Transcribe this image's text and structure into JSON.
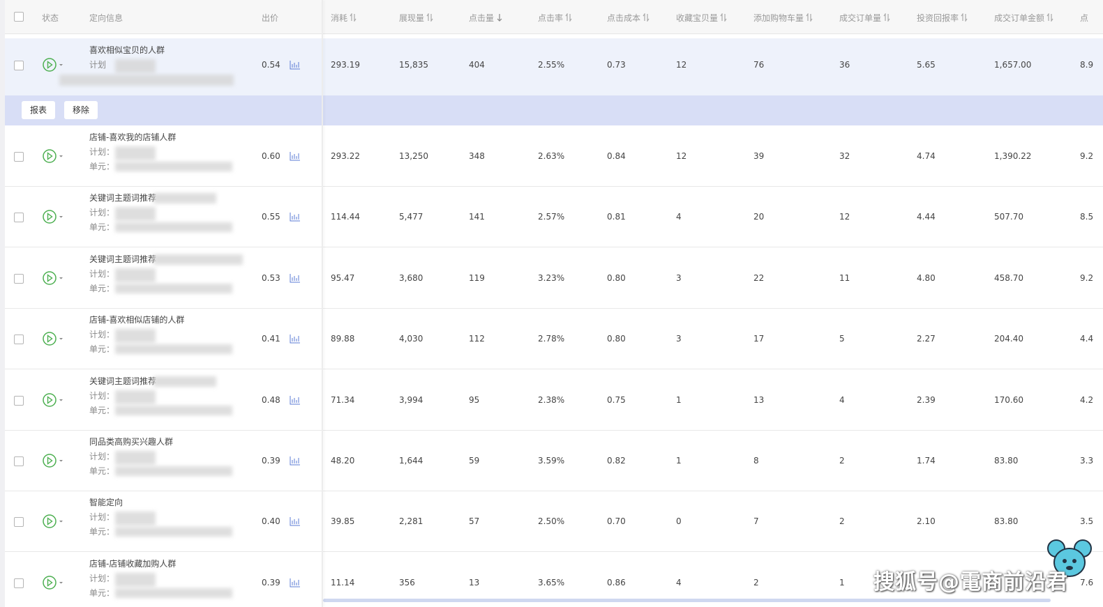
{
  "header": {
    "columns": [
      {
        "label": "状态"
      },
      {
        "label": "定向信息"
      },
      {
        "label": "出价"
      },
      {
        "label": "消耗",
        "sort": "both"
      },
      {
        "label": "展现量",
        "sort": "both"
      },
      {
        "label": "点击量",
        "sort": "desc"
      },
      {
        "label": "点击率",
        "sort": "both"
      },
      {
        "label": "点击成本",
        "sort": "both"
      },
      {
        "label": "收藏宝贝量",
        "sort": "both"
      },
      {
        "label": "添加购物车量",
        "sort": "both"
      },
      {
        "label": "成交订单量",
        "sort": "both"
      },
      {
        "label": "投资回报率",
        "sort": "both"
      },
      {
        "label": "成交订单金额",
        "sort": "both"
      },
      {
        "label": "点"
      }
    ]
  },
  "actions": [
    "报表",
    "移除"
  ],
  "rows": [
    {
      "name": "喜欢相似宝贝的人群",
      "plan_label": "计划",
      "bid": "0.54",
      "metrics": [
        "293.19",
        "15,835",
        "404",
        "2.55%",
        "0.73",
        "12",
        "76",
        "36",
        "5.65",
        "1,657.00",
        "8.9"
      ]
    },
    {
      "name": "店铺-喜欢我的店铺人群",
      "plan_label": "计划：",
      "unit_label": "单元：",
      "bid": "0.60",
      "metrics": [
        "293.22",
        "13,250",
        "348",
        "2.63%",
        "0.84",
        "12",
        "39",
        "32",
        "4.74",
        "1,390.22",
        "9.2"
      ]
    },
    {
      "name": "关键词主题词推荐",
      "plan_label": "计划：",
      "unit_label": "单元：",
      "bid": "0.55",
      "metrics": [
        "114.44",
        "5,477",
        "141",
        "2.57%",
        "0.81",
        "4",
        "20",
        "12",
        "4.44",
        "507.70",
        "8.5"
      ]
    },
    {
      "name": "关键词主题词推荐",
      "plan_label": "计划：",
      "unit_label": "单元：",
      "bid": "0.53",
      "metrics": [
        "95.47",
        "3,680",
        "119",
        "3.23%",
        "0.80",
        "3",
        "22",
        "11",
        "4.80",
        "458.70",
        "9.2"
      ]
    },
    {
      "name": "店铺-喜欢相似店铺的人群",
      "plan_label": "计划：",
      "unit_label": "单元：",
      "bid": "0.41",
      "metrics": [
        "89.88",
        "4,030",
        "112",
        "2.78%",
        "0.80",
        "3",
        "17",
        "5",
        "2.27",
        "204.40",
        "4.4"
      ]
    },
    {
      "name": "关键词主题词推荐",
      "plan_label": "计划：",
      "unit_label": "单元：",
      "bid": "0.48",
      "metrics": [
        "71.34",
        "3,994",
        "95",
        "2.38%",
        "0.75",
        "1",
        "13",
        "4",
        "2.39",
        "170.60",
        "4.2"
      ]
    },
    {
      "name": "同品类高购买兴趣人群",
      "plan_label": "计划：",
      "unit_label": "单元：",
      "bid": "0.39",
      "metrics": [
        "48.20",
        "1,644",
        "59",
        "3.59%",
        "0.82",
        "1",
        "8",
        "2",
        "1.74",
        "83.80",
        "3.3"
      ]
    },
    {
      "name": "智能定向",
      "plan_label": "计划：",
      "unit_label": "单元：",
      "bid": "0.40",
      "metrics": [
        "39.85",
        "2,281",
        "57",
        "2.50%",
        "0.70",
        "0",
        "7",
        "2",
        "2.10",
        "83.80",
        "3.5"
      ]
    },
    {
      "name": "店铺-店铺收藏加购人群",
      "plan_label": "计划：",
      "unit_label": "单元：",
      "bid": "0.39",
      "metrics": [
        "11.14",
        "356",
        "13",
        "3.65%",
        "0.86",
        "4",
        "2",
        "1",
        null,
        null,
        "7.6"
      ]
    }
  ],
  "watermark": "搜狐号@電商前沿君"
}
